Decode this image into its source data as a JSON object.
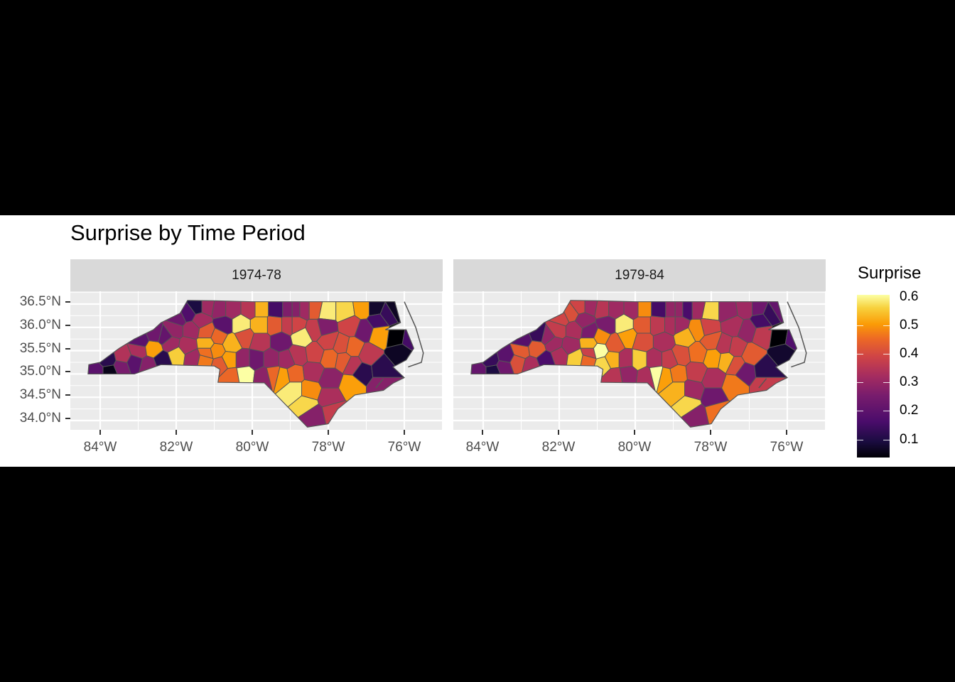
{
  "title": "Surprise by Time Period",
  "panels": [
    {
      "label": "1974-78"
    },
    {
      "label": "1979-84"
    }
  ],
  "axes": {
    "y_labels": [
      "36.5°N",
      "36.0°N",
      "35.5°N",
      "35.0°N",
      "34.5°N",
      "34.0°N"
    ],
    "x_labels": [
      "84°W",
      "82°W",
      "80°W",
      "78°W",
      "76°W"
    ]
  },
  "legend": {
    "title": "Surprise",
    "labels": [
      "0.6",
      "0.5",
      "0.4",
      "0.3",
      "0.2",
      "0.1"
    ]
  },
  "chart_data": {
    "type": "choropleth",
    "title": "Surprise by Time Period",
    "facets": [
      "1974-78",
      "1979-84"
    ],
    "xlabel": "",
    "ylabel": "",
    "x_ticks": [
      -84,
      -82,
      -80,
      -78,
      -76
    ],
    "y_ticks": [
      34.0,
      34.5,
      35.0,
      35.5,
      36.0,
      36.5
    ],
    "xlim": [
      -84.8,
      -75.0
    ],
    "ylim": [
      33.75,
      36.75
    ],
    "legend": {
      "title": "Surprise",
      "range": [
        0.04,
        0.6
      ],
      "ticks": [
        0.1,
        0.2,
        0.3,
        0.4,
        0.5,
        0.6
      ],
      "palette": "inferno"
    },
    "counties": [
      {
        "lon": -84.1,
        "lat": 35.05,
        "v1": 0.18,
        "v2": 0.2
      },
      {
        "lon": -83.75,
        "lat": 35.05,
        "v1": 0.04,
        "v2": 0.08
      },
      {
        "lon": -83.8,
        "lat": 35.3,
        "v1": 0.1,
        "v2": 0.12
      },
      {
        "lon": -83.45,
        "lat": 35.15,
        "v1": 0.24,
        "v2": 0.22
      },
      {
        "lon": -83.4,
        "lat": 35.38,
        "v1": 0.33,
        "v2": 0.18
      },
      {
        "lon": -83.1,
        "lat": 35.25,
        "v1": 0.18,
        "v2": 0.4
      },
      {
        "lon": -82.75,
        "lat": 35.18,
        "v1": 0.26,
        "v2": 0.32
      },
      {
        "lon": -82.35,
        "lat": 35.3,
        "v1": 0.1,
        "v2": 0.15
      },
      {
        "lon": -83.0,
        "lat": 35.5,
        "v1": 0.32,
        "v2": 0.42
      },
      {
        "lon": -82.95,
        "lat": 35.72,
        "v1": 0.18,
        "v2": 0.17
      },
      {
        "lon": -82.6,
        "lat": 35.55,
        "v1": 0.5,
        "v2": 0.42
      },
      {
        "lon": -82.55,
        "lat": 35.85,
        "v1": 0.22,
        "v2": 0.12
      },
      {
        "lon": -82.3,
        "lat": 35.8,
        "v1": 0.2,
        "v2": 0.28
      },
      {
        "lon": -82.0,
        "lat": 35.4,
        "v1": 0.55,
        "v2": 0.32
      },
      {
        "lon": -82.15,
        "lat": 35.65,
        "v1": 0.3,
        "v2": 0.3
      },
      {
        "lon": -82.05,
        "lat": 35.95,
        "v1": 0.28,
        "v2": 0.36
      },
      {
        "lon": -81.95,
        "lat": 36.2,
        "v1": 0.22,
        "v2": 0.38
      },
      {
        "lon": -81.7,
        "lat": 36.3,
        "v1": 0.16,
        "v2": 0.4
      },
      {
        "lon": -81.45,
        "lat": 36.45,
        "v1": 0.08,
        "v2": 0.38
      },
      {
        "lon": -81.2,
        "lat": 36.45,
        "v1": 0.3,
        "v2": 0.3
      },
      {
        "lon": -81.6,
        "lat": 35.95,
        "v1": 0.3,
        "v2": 0.32
      },
      {
        "lon": -81.35,
        "lat": 36.15,
        "v1": 0.31,
        "v2": 0.28
      },
      {
        "lon": -81.7,
        "lat": 35.6,
        "v1": 0.32,
        "v2": 0.3
      },
      {
        "lon": -81.55,
        "lat": 35.35,
        "v1": 0.3,
        "v2": 0.55
      },
      {
        "lon": -81.2,
        "lat": 35.65,
        "v1": 0.52,
        "v2": 0.52
      },
      {
        "lon": -81.25,
        "lat": 35.3,
        "v1": 0.46,
        "v2": 0.44
      },
      {
        "lon": -81.2,
        "lat": 35.45,
        "v1": 0.45,
        "v2": 0.37
      },
      {
        "lon": -81.2,
        "lat": 35.9,
        "v1": 0.42,
        "v2": 0.24
      },
      {
        "lon": -80.9,
        "lat": 35.8,
        "v1": 0.44,
        "v2": 0.48
      },
      {
        "lon": -80.95,
        "lat": 35.5,
        "v1": 0.48,
        "v2": 0.6
      },
      {
        "lon": -80.85,
        "lat": 35.2,
        "v1": 0.42,
        "v2": 0.56
      },
      {
        "lon": -80.75,
        "lat": 36.05,
        "v1": 0.18,
        "v2": 0.24
      },
      {
        "lon": -80.55,
        "lat": 36.4,
        "v1": 0.3,
        "v2": 0.3
      },
      {
        "lon": -80.85,
        "lat": 36.4,
        "v1": 0.28,
        "v2": 0.34
      },
      {
        "lon": -80.55,
        "lat": 35.65,
        "v1": 0.52,
        "v2": 0.42
      },
      {
        "lon": -80.6,
        "lat": 35.3,
        "v1": 0.5,
        "v2": 0.52
      },
      {
        "lon": -80.55,
        "lat": 34.95,
        "v1": 0.44,
        "v2": 0.34
      },
      {
        "lon": -80.3,
        "lat": 36.05,
        "v1": 0.58,
        "v2": 0.58
      },
      {
        "lon": -80.2,
        "lat": 35.8,
        "v1": 0.4,
        "v2": 0.5
      },
      {
        "lon": -80.25,
        "lat": 35.3,
        "v1": 0.28,
        "v2": 0.32
      },
      {
        "lon": -80.2,
        "lat": 35.0,
        "v1": 0.6,
        "v2": 0.28
      },
      {
        "lon": -80.05,
        "lat": 36.4,
        "v1": 0.34,
        "v2": 0.3
      },
      {
        "lon": -79.8,
        "lat": 36.4,
        "v1": 0.52,
        "v2": 0.48
      },
      {
        "lon": -79.8,
        "lat": 36.05,
        "v1": 0.52,
        "v2": 0.42
      },
      {
        "lon": -79.8,
        "lat": 35.7,
        "v1": 0.34,
        "v2": 0.4
      },
      {
        "lon": -79.9,
        "lat": 35.3,
        "v1": 0.22,
        "v2": 0.55
      },
      {
        "lon": -79.7,
        "lat": 34.95,
        "v1": 0.27,
        "v2": 0.32
      },
      {
        "lon": -79.35,
        "lat": 36.4,
        "v1": 0.14,
        "v2": 0.14
      },
      {
        "lon": -79.4,
        "lat": 36.05,
        "v1": 0.42,
        "v2": 0.35
      },
      {
        "lon": -79.25,
        "lat": 35.7,
        "v1": 0.22,
        "v2": 0.32
      },
      {
        "lon": -79.5,
        "lat": 35.3,
        "v1": 0.28,
        "v2": 0.32
      },
      {
        "lon": -79.45,
        "lat": 35.0,
        "v1": 0.44,
        "v2": 0.6
      },
      {
        "lon": -79.05,
        "lat": 36.4,
        "v1": 0.25,
        "v2": 0.28
      },
      {
        "lon": -79.05,
        "lat": 36.05,
        "v1": 0.36,
        "v2": 0.32
      },
      {
        "lon": -79.1,
        "lat": 35.3,
        "v1": 0.3,
        "v2": 0.36
      },
      {
        "lon": -79.2,
        "lat": 34.95,
        "v1": 0.5,
        "v2": 0.5
      },
      {
        "lon": -78.85,
        "lat": 36.4,
        "v1": 0.26,
        "v2": 0.28
      },
      {
        "lon": -78.85,
        "lat": 36.05,
        "v1": 0.38,
        "v2": 0.3
      },
      {
        "lon": -78.65,
        "lat": 36.4,
        "v1": 0.3,
        "v2": 0.15
      },
      {
        "lon": -78.7,
        "lat": 35.8,
        "v1": 0.58,
        "v2": 0.52
      },
      {
        "lon": -78.8,
        "lat": 35.4,
        "v1": 0.34,
        "v2": 0.4
      },
      {
        "lon": -78.9,
        "lat": 35.0,
        "v1": 0.44,
        "v2": 0.46
      },
      {
        "lon": -78.9,
        "lat": 34.65,
        "v1": 0.58,
        "v2": 0.52
      },
      {
        "lon": -78.6,
        "lat": 34.35,
        "v1": 0.56,
        "v2": 0.56
      },
      {
        "lon": -78.4,
        "lat": 34.1,
        "v1": 0.26,
        "v2": 0.26
      },
      {
        "lon": -78.5,
        "lat": 34.65,
        "v1": 0.48,
        "v2": 0.3
      },
      {
        "lon": -78.4,
        "lat": 35.05,
        "v1": 0.32,
        "v2": 0.36
      },
      {
        "lon": -78.35,
        "lat": 35.45,
        "v1": 0.38,
        "v2": 0.45
      },
      {
        "lon": -78.35,
        "lat": 35.95,
        "v1": 0.36,
        "v2": 0.48
      },
      {
        "lon": -78.35,
        "lat": 36.4,
        "v1": 0.42,
        "v2": 0.3
      },
      {
        "lon": -78.05,
        "lat": 36.35,
        "v1": 0.58,
        "v2": 0.56
      },
      {
        "lon": -78.1,
        "lat": 36.0,
        "v1": 0.25,
        "v2": 0.38
      },
      {
        "lon": -78.0,
        "lat": 35.7,
        "v1": 0.38,
        "v2": 0.42
      },
      {
        "lon": -77.95,
        "lat": 35.35,
        "v1": 0.44,
        "v2": 0.5
      },
      {
        "lon": -77.95,
        "lat": 34.9,
        "v1": 0.27,
        "v2": 0.32
      },
      {
        "lon": -77.95,
        "lat": 34.5,
        "v1": 0.32,
        "v2": 0.22
      },
      {
        "lon": -77.85,
        "lat": 34.2,
        "v1": 0.36,
        "v2": 0.45
      },
      {
        "lon": -77.65,
        "lat": 35.6,
        "v1": 0.4,
        "v2": 0.34
      },
      {
        "lon": -77.6,
        "lat": 35.3,
        "v1": 0.42,
        "v2": 0.52
      },
      {
        "lon": -77.55,
        "lat": 36.35,
        "v1": 0.56,
        "v2": 0.28
      },
      {
        "lon": -77.4,
        "lat": 36.05,
        "v1": 0.38,
        "v2": 0.32
      },
      {
        "lon": -77.35,
        "lat": 35.55,
        "v1": 0.44,
        "v2": 0.36
      },
      {
        "lon": -77.35,
        "lat": 35.2,
        "v1": 0.34,
        "v2": 0.4
      },
      {
        "lon": -77.4,
        "lat": 34.75,
        "v1": 0.5,
        "v2": 0.46
      },
      {
        "lon": -77.1,
        "lat": 36.4,
        "v1": 0.5,
        "v2": 0.3
      },
      {
        "lon": -77.05,
        "lat": 35.95,
        "v1": 0.22,
        "v2": 0.28
      },
      {
        "lon": -77.1,
        "lat": 35.05,
        "v1": 0.1,
        "v2": 0.22
      },
      {
        "lon": -76.95,
        "lat": 35.4,
        "v1": 0.35,
        "v2": 0.42
      },
      {
        "lon": -76.75,
        "lat": 36.4,
        "v1": 0.06,
        "v2": 0.22
      },
      {
        "lon": -76.7,
        "lat": 36.15,
        "v1": 0.14,
        "v2": 0.14
      },
      {
        "lon": -76.65,
        "lat": 35.85,
        "v1": 0.5,
        "v2": 0.35
      },
      {
        "lon": -76.6,
        "lat": 35.1,
        "v1": 0.1,
        "v2": 0.1
      },
      {
        "lon": -76.6,
        "lat": 34.75,
        "v1": 0.26,
        "v2": 0.36
      },
      {
        "lon": -76.45,
        "lat": 36.3,
        "v1": 0.12,
        "v2": 0.12
      },
      {
        "lon": -76.25,
        "lat": 36.4,
        "v1": 0.05,
        "v2": 0.2
      },
      {
        "lon": -76.2,
        "lat": 35.8,
        "v1": 0.02,
        "v2": 0.02
      },
      {
        "lon": -76.1,
        "lat": 35.45,
        "v1": 0.05,
        "v2": 0.06
      },
      {
        "lon": -75.85,
        "lat": 35.75,
        "v1": 0.14,
        "v2": 0.16
      }
    ]
  }
}
